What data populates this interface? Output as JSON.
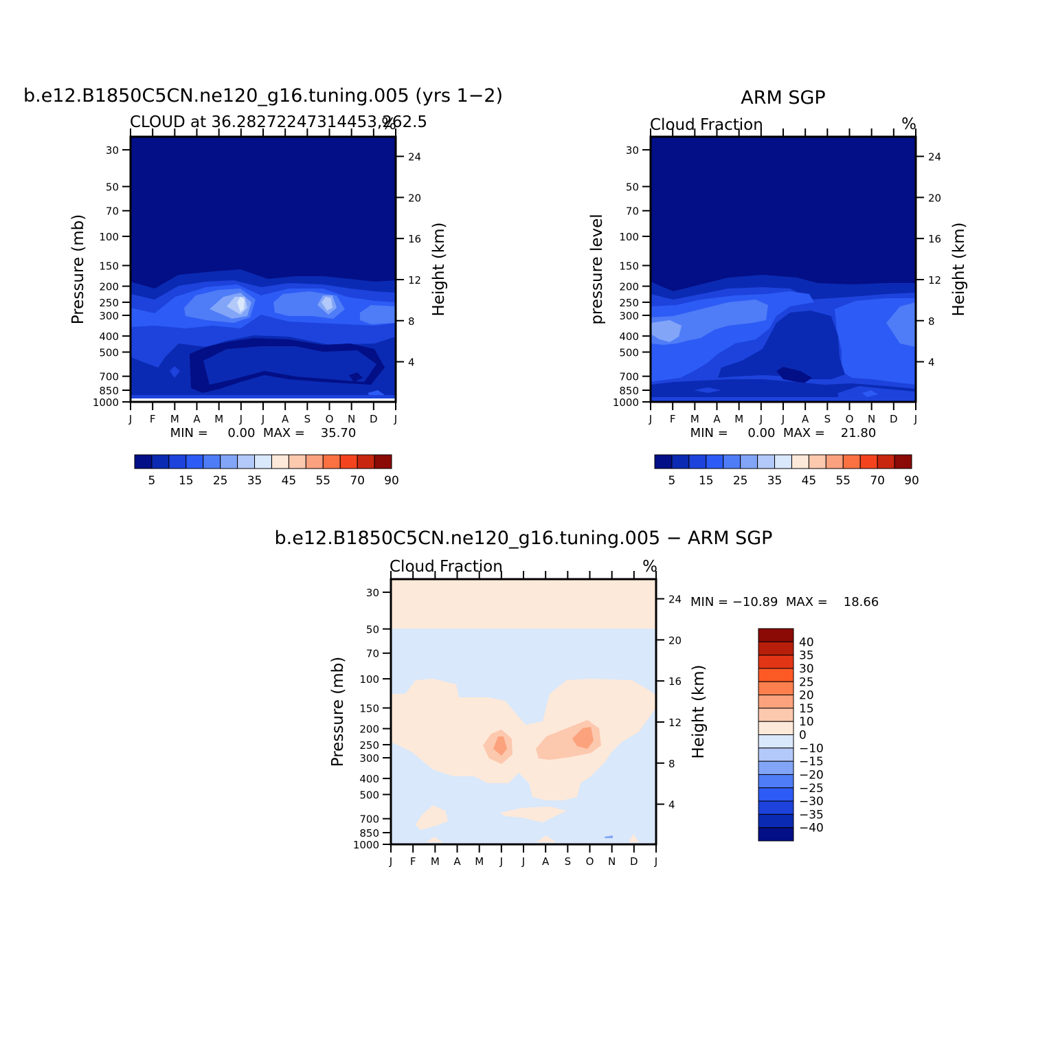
{
  "chart_data": [
    {
      "type": "heatmap",
      "title": "b.e12.B1850C5CN.ne120_g16.tuning.005 (yrs 1−2)",
      "subtitle_left": "CLOUD at 36.28272247314453,262.5",
      "subtitle_right": "%",
      "ylabel": "Pressure (mb)",
      "ylabel_right": "Height (km)",
      "stats": "MIN =     0.00  MAX =    35.70",
      "x_ticks": [
        "J",
        "F",
        "M",
        "A",
        "M",
        "J",
        "J",
        "A",
        "S",
        "O",
        "N",
        "D",
        "J"
      ],
      "y_ticks": [
        30,
        50,
        70,
        100,
        150,
        200,
        250,
        300,
        400,
        500,
        700,
        850,
        1000
      ],
      "y_ticks_right": [
        24,
        20,
        16,
        12,
        8,
        4
      ],
      "ylim": [
        1000,
        25
      ],
      "colorbar_labels": [
        "5",
        "15",
        "25",
        "35",
        "45",
        "55",
        "70",
        "90"
      ],
      "colorbar_colors": [
        "#030f86",
        "#0b2ab3",
        "#1d43dc",
        "#2d5bf5",
        "#4f7cf7",
        "#82a5f8",
        "#b3c9f9",
        "#dae8fc",
        "#fde9d9",
        "#fcc8ae",
        "#fca17f",
        "#fb7142",
        "#f4441f",
        "#c9260f",
        "#8b0a06"
      ]
    },
    {
      "type": "heatmap",
      "title": "ARM SGP",
      "subtitle_left": "Cloud Fraction",
      "subtitle_right": "%",
      "ylabel": "pressure level",
      "ylabel_right": "Height (km)",
      "stats": "MIN =     0.00  MAX =    21.80",
      "x_ticks": [
        "J",
        "F",
        "M",
        "A",
        "M",
        "J",
        "J",
        "A",
        "S",
        "O",
        "N",
        "D",
        "J"
      ],
      "y_ticks": [
        30,
        50,
        70,
        100,
        150,
        200,
        250,
        300,
        400,
        500,
        700,
        850,
        1000
      ],
      "y_ticks_right": [
        24,
        20,
        16,
        12,
        8,
        4
      ],
      "ylim": [
        1000,
        25
      ],
      "colorbar_labels": [
        "5",
        "15",
        "25",
        "35",
        "45",
        "55",
        "70",
        "90"
      ],
      "colorbar_colors": [
        "#030f86",
        "#0b2ab3",
        "#1d43dc",
        "#2d5bf5",
        "#4f7cf7",
        "#82a5f8",
        "#b3c9f9",
        "#dae8fc",
        "#fde9d9",
        "#fcc8ae",
        "#fca17f",
        "#fb7142",
        "#f4441f",
        "#c9260f",
        "#8b0a06"
      ]
    },
    {
      "type": "heatmap",
      "title": "b.e12.B1850C5CN.ne120_g16.tuning.005 − ARM SGP",
      "subtitle_left": "Cloud Fraction",
      "subtitle_right": "%",
      "ylabel": "Pressure (mb)",
      "ylabel_right": "Height (km)",
      "stats": "MIN = −10.89  MAX =    18.66",
      "x_ticks": [
        "J",
        "F",
        "M",
        "A",
        "M",
        "J",
        "J",
        "A",
        "S",
        "O",
        "N",
        "D",
        "J"
      ],
      "y_ticks": [
        30,
        50,
        70,
        100,
        150,
        200,
        250,
        300,
        400,
        500,
        700,
        850,
        1000
      ],
      "y_ticks_right": [
        24,
        20,
        16,
        12,
        8,
        4
      ],
      "ylim": [
        1000,
        25
      ],
      "colorbar_labels": [
        "40",
        "35",
        "30",
        "25",
        "20",
        "15",
        "10",
        "0",
        "−10",
        "−15",
        "−20",
        "−25",
        "−30",
        "−35",
        "−40"
      ],
      "colorbar_colors": [
        "#8b0a06",
        "#b81f0b",
        "#e23515",
        "#fb5a25",
        "#fc7f4d",
        "#fca27c",
        "#fcc8ae",
        "#fde9d9",
        "#dae8fc",
        "#b3c9f9",
        "#82a5f8",
        "#4f7cf7",
        "#2d5bf5",
        "#1d43dc",
        "#0b2ab3",
        "#030f86"
      ]
    }
  ]
}
